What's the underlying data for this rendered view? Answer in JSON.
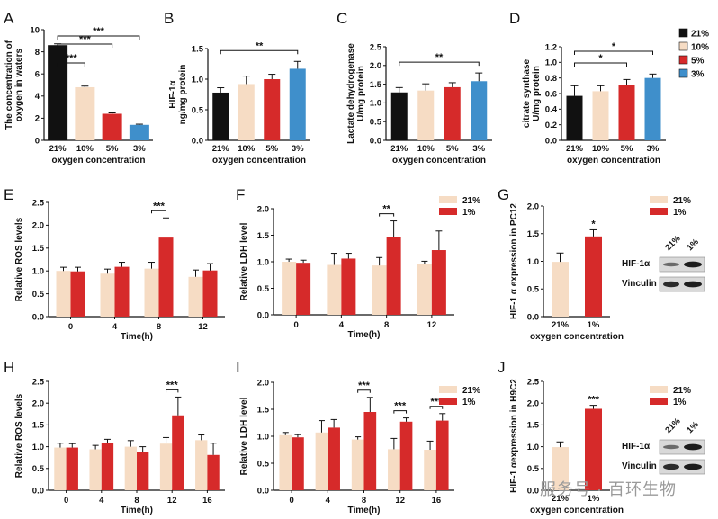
{
  "figure": {
    "legend_top": [
      {
        "label": "21%",
        "color": "#111111"
      },
      {
        "label": "10%",
        "color": "#f6dcc4"
      },
      {
        "label": "5%",
        "color": "#d62a2a"
      },
      {
        "label": "3%",
        "color": "#3f8fcb"
      }
    ],
    "watermark": "服务号 · 百环生物",
    "blots": {
      "G": {
        "lanes": [
          "21%",
          "1%"
        ],
        "rows": [
          "HIF-1α",
          "Vinculin"
        ]
      },
      "J": {
        "lanes": [
          "21%",
          "1%"
        ],
        "rows": [
          "HIF-1α",
          "Vinculin"
        ]
      }
    }
  },
  "chart_data": [
    {
      "panel": "A",
      "type": "bar",
      "categories": [
        "21%",
        "10%",
        "5%",
        "3%"
      ],
      "values": [
        8.6,
        4.8,
        2.4,
        1.4
      ],
      "errors": [
        0.12,
        0.1,
        0.08,
        0.06
      ],
      "colors": [
        "#111111",
        "#f6dcc4",
        "#d62a2a",
        "#3f8fcb"
      ],
      "xlabel": "oxygen concentration",
      "ylabel": [
        "The concentration of",
        "oxygen in waters"
      ],
      "ylim": [
        0,
        10
      ],
      "yticks": [
        "0",
        "2",
        "4",
        "6",
        "8",
        "10"
      ],
      "significance": [
        {
          "from": 0,
          "to": 1,
          "label": "***"
        },
        {
          "from": 0,
          "to": 2,
          "label": "***"
        },
        {
          "from": 0,
          "to": 3,
          "label": "***"
        }
      ]
    },
    {
      "panel": "B",
      "type": "bar",
      "categories": [
        "21%",
        "10%",
        "5%",
        "3%"
      ],
      "values": [
        0.78,
        0.92,
        1.0,
        1.17
      ],
      "errors": [
        0.08,
        0.13,
        0.08,
        0.12
      ],
      "colors": [
        "#111111",
        "#f6dcc4",
        "#d62a2a",
        "#3f8fcb"
      ],
      "xlabel": "oxygen concentration",
      "ylabel": [
        "HIF-1α",
        "ng/mg protein"
      ],
      "ylim": [
        0,
        1.5
      ],
      "yticks": [
        "0.0",
        "0.5",
        "1.0",
        "1.5"
      ],
      "significance": [
        {
          "from": 0,
          "to": 3,
          "label": "**"
        }
      ]
    },
    {
      "panel": "C",
      "type": "bar",
      "categories": [
        "21%",
        "10%",
        "5%",
        "3%"
      ],
      "values": [
        1.28,
        1.33,
        1.42,
        1.58
      ],
      "errors": [
        0.13,
        0.18,
        0.12,
        0.22
      ],
      "colors": [
        "#111111",
        "#f6dcc4",
        "#d62a2a",
        "#3f8fcb"
      ],
      "xlabel": "oxygen concentration",
      "ylabel": [
        "Lactate dehydrogenase",
        "U/mg protein"
      ],
      "ylim": [
        0,
        2.5
      ],
      "yticks": [
        "0.0",
        "0.5",
        "1.0",
        "1.5",
        "2.0",
        "2.5"
      ],
      "significance": [
        {
          "from": 0,
          "to": 3,
          "label": "**"
        }
      ]
    },
    {
      "panel": "D",
      "type": "bar",
      "categories": [
        "21%",
        "10%",
        "5%",
        "3%"
      ],
      "values": [
        0.57,
        0.63,
        0.71,
        0.8
      ],
      "errors": [
        0.13,
        0.07,
        0.07,
        0.05
      ],
      "colors": [
        "#111111",
        "#f6dcc4",
        "#d62a2a",
        "#3f8fcb"
      ],
      "xlabel": "oxygen concentration",
      "ylabel": [
        "citrate synthase",
        "U/mg protein"
      ],
      "ylim": [
        0,
        1.2
      ],
      "yticks": [
        "0.0",
        "0.2",
        "0.4",
        "0.6",
        "0.8",
        "1.0",
        "1.2"
      ],
      "significance": [
        {
          "from": 0,
          "to": 2,
          "label": "*"
        },
        {
          "from": 0,
          "to": 3,
          "label": "*"
        }
      ]
    },
    {
      "panel": "E",
      "type": "bar",
      "categories": [
        "0",
        "4",
        "8",
        "12"
      ],
      "series": [
        {
          "name": "21%",
          "color": "#f6dcc4",
          "values": [
            1.0,
            0.94,
            1.05,
            0.87
          ],
          "errors": [
            0.08,
            0.1,
            0.14,
            0.15
          ]
        },
        {
          "name": "1%",
          "color": "#d62a2a",
          "values": [
            0.99,
            1.09,
            1.73,
            1.01
          ],
          "errors": [
            0.09,
            0.1,
            0.43,
            0.15
          ]
        }
      ],
      "xlabel": "Time(h)",
      "ylabel": [
        "Relative ROS levels"
      ],
      "ylim": [
        0,
        2.5
      ],
      "yticks": [
        "0.0",
        "0.5",
        "1.0",
        "1.5",
        "2.0",
        "2.5"
      ],
      "significance": [
        {
          "group": 2,
          "label": "***"
        }
      ]
    },
    {
      "panel": "F",
      "type": "bar",
      "categories": [
        "0",
        "4",
        "8",
        "12"
      ],
      "series": [
        {
          "name": "21%",
          "color": "#f6dcc4",
          "values": [
            1.0,
            0.94,
            0.93,
            0.96
          ],
          "errors": [
            0.05,
            0.22,
            0.15,
            0.05
          ]
        },
        {
          "name": "1%",
          "color": "#d62a2a",
          "values": [
            0.98,
            1.06,
            1.46,
            1.22
          ],
          "errors": [
            0.05,
            0.1,
            0.31,
            0.36
          ]
        }
      ],
      "xlabel": "Time(h)",
      "ylabel": [
        "Relative LDH level"
      ],
      "ylim": [
        0,
        2.0
      ],
      "yticks": [
        "0.0",
        "0.5",
        "1.0",
        "1.5",
        "2.0"
      ],
      "significance": [
        {
          "group": 2,
          "label": "**"
        }
      ]
    },
    {
      "panel": "G",
      "type": "bar",
      "categories": [
        "21%",
        "1%"
      ],
      "values": [
        0.99,
        1.45
      ],
      "errors": [
        0.16,
        0.12
      ],
      "colors": [
        "#f6dcc4",
        "#d62a2a"
      ],
      "xlabel": "oxygen concentration",
      "ylabel": [
        "HIF-1 α expression in PC12"
      ],
      "ylim": [
        0,
        2.0
      ],
      "yticks": [
        "0.0",
        "0.5",
        "1.0",
        "1.5",
        "2.0"
      ],
      "significance": [
        {
          "bar": 1,
          "label": "*"
        }
      ],
      "legend": [
        "21%",
        "1%"
      ]
    },
    {
      "panel": "H",
      "type": "bar",
      "categories": [
        "0",
        "4",
        "8",
        "12",
        "16"
      ],
      "series": [
        {
          "name": "21%",
          "color": "#f6dcc4",
          "values": [
            0.98,
            0.94,
            1.0,
            1.07,
            1.15
          ],
          "errors": [
            0.1,
            0.09,
            0.14,
            0.14,
            0.12
          ]
        },
        {
          "name": "1%",
          "color": "#d62a2a",
          "values": [
            0.98,
            1.08,
            0.87,
            1.72,
            0.81
          ],
          "errors": [
            0.09,
            0.09,
            0.13,
            0.42,
            0.27
          ]
        }
      ],
      "xlabel": "Time(h)",
      "ylabel": [
        "Relative ROS levels"
      ],
      "ylim": [
        0,
        2.5
      ],
      "yticks": [
        "0.0",
        "0.5",
        "1.0",
        "1.5",
        "2.0",
        "2.5"
      ],
      "significance": [
        {
          "group": 3,
          "label": "***"
        }
      ]
    },
    {
      "panel": "I",
      "type": "bar",
      "categories": [
        "0",
        "4",
        "8",
        "12",
        "16"
      ],
      "series": [
        {
          "name": "21%",
          "color": "#f6dcc4",
          "values": [
            1.02,
            1.07,
            0.94,
            0.76,
            0.75
          ],
          "errors": [
            0.05,
            0.22,
            0.05,
            0.2,
            0.16
          ]
        },
        {
          "name": "1%",
          "color": "#d62a2a",
          "values": [
            0.98,
            1.16,
            1.45,
            1.27,
            1.29
          ],
          "errors": [
            0.05,
            0.15,
            0.27,
            0.07,
            0.13
          ]
        }
      ],
      "xlabel": "Time(h)",
      "ylabel": [
        "Relative LDH level"
      ],
      "ylim": [
        0,
        2.0
      ],
      "yticks": [
        "0.0",
        "0.5",
        "1.0",
        "1.5",
        "2.0"
      ],
      "significance": [
        {
          "group": 2,
          "label": "***"
        },
        {
          "group": 3,
          "label": "***"
        },
        {
          "group": 4,
          "label": "***"
        }
      ],
      "legend": [
        "21%",
        "1%"
      ]
    },
    {
      "panel": "J",
      "type": "bar",
      "categories": [
        "21%",
        "1%"
      ],
      "values": [
        0.99,
        1.87
      ],
      "errors": [
        0.12,
        0.08
      ],
      "colors": [
        "#f6dcc4",
        "#d62a2a"
      ],
      "xlabel": "oxygen concentration",
      "ylabel": [
        "HIF-1 αexpression in H9C2"
      ],
      "ylim": [
        0,
        2.5
      ],
      "yticks": [
        "0.0",
        "0.5",
        "1.0",
        "1.5",
        "2.0",
        "2.5"
      ],
      "significance": [
        {
          "bar": 1,
          "label": "***"
        }
      ],
      "legend": [
        "21%",
        "1%"
      ]
    }
  ]
}
